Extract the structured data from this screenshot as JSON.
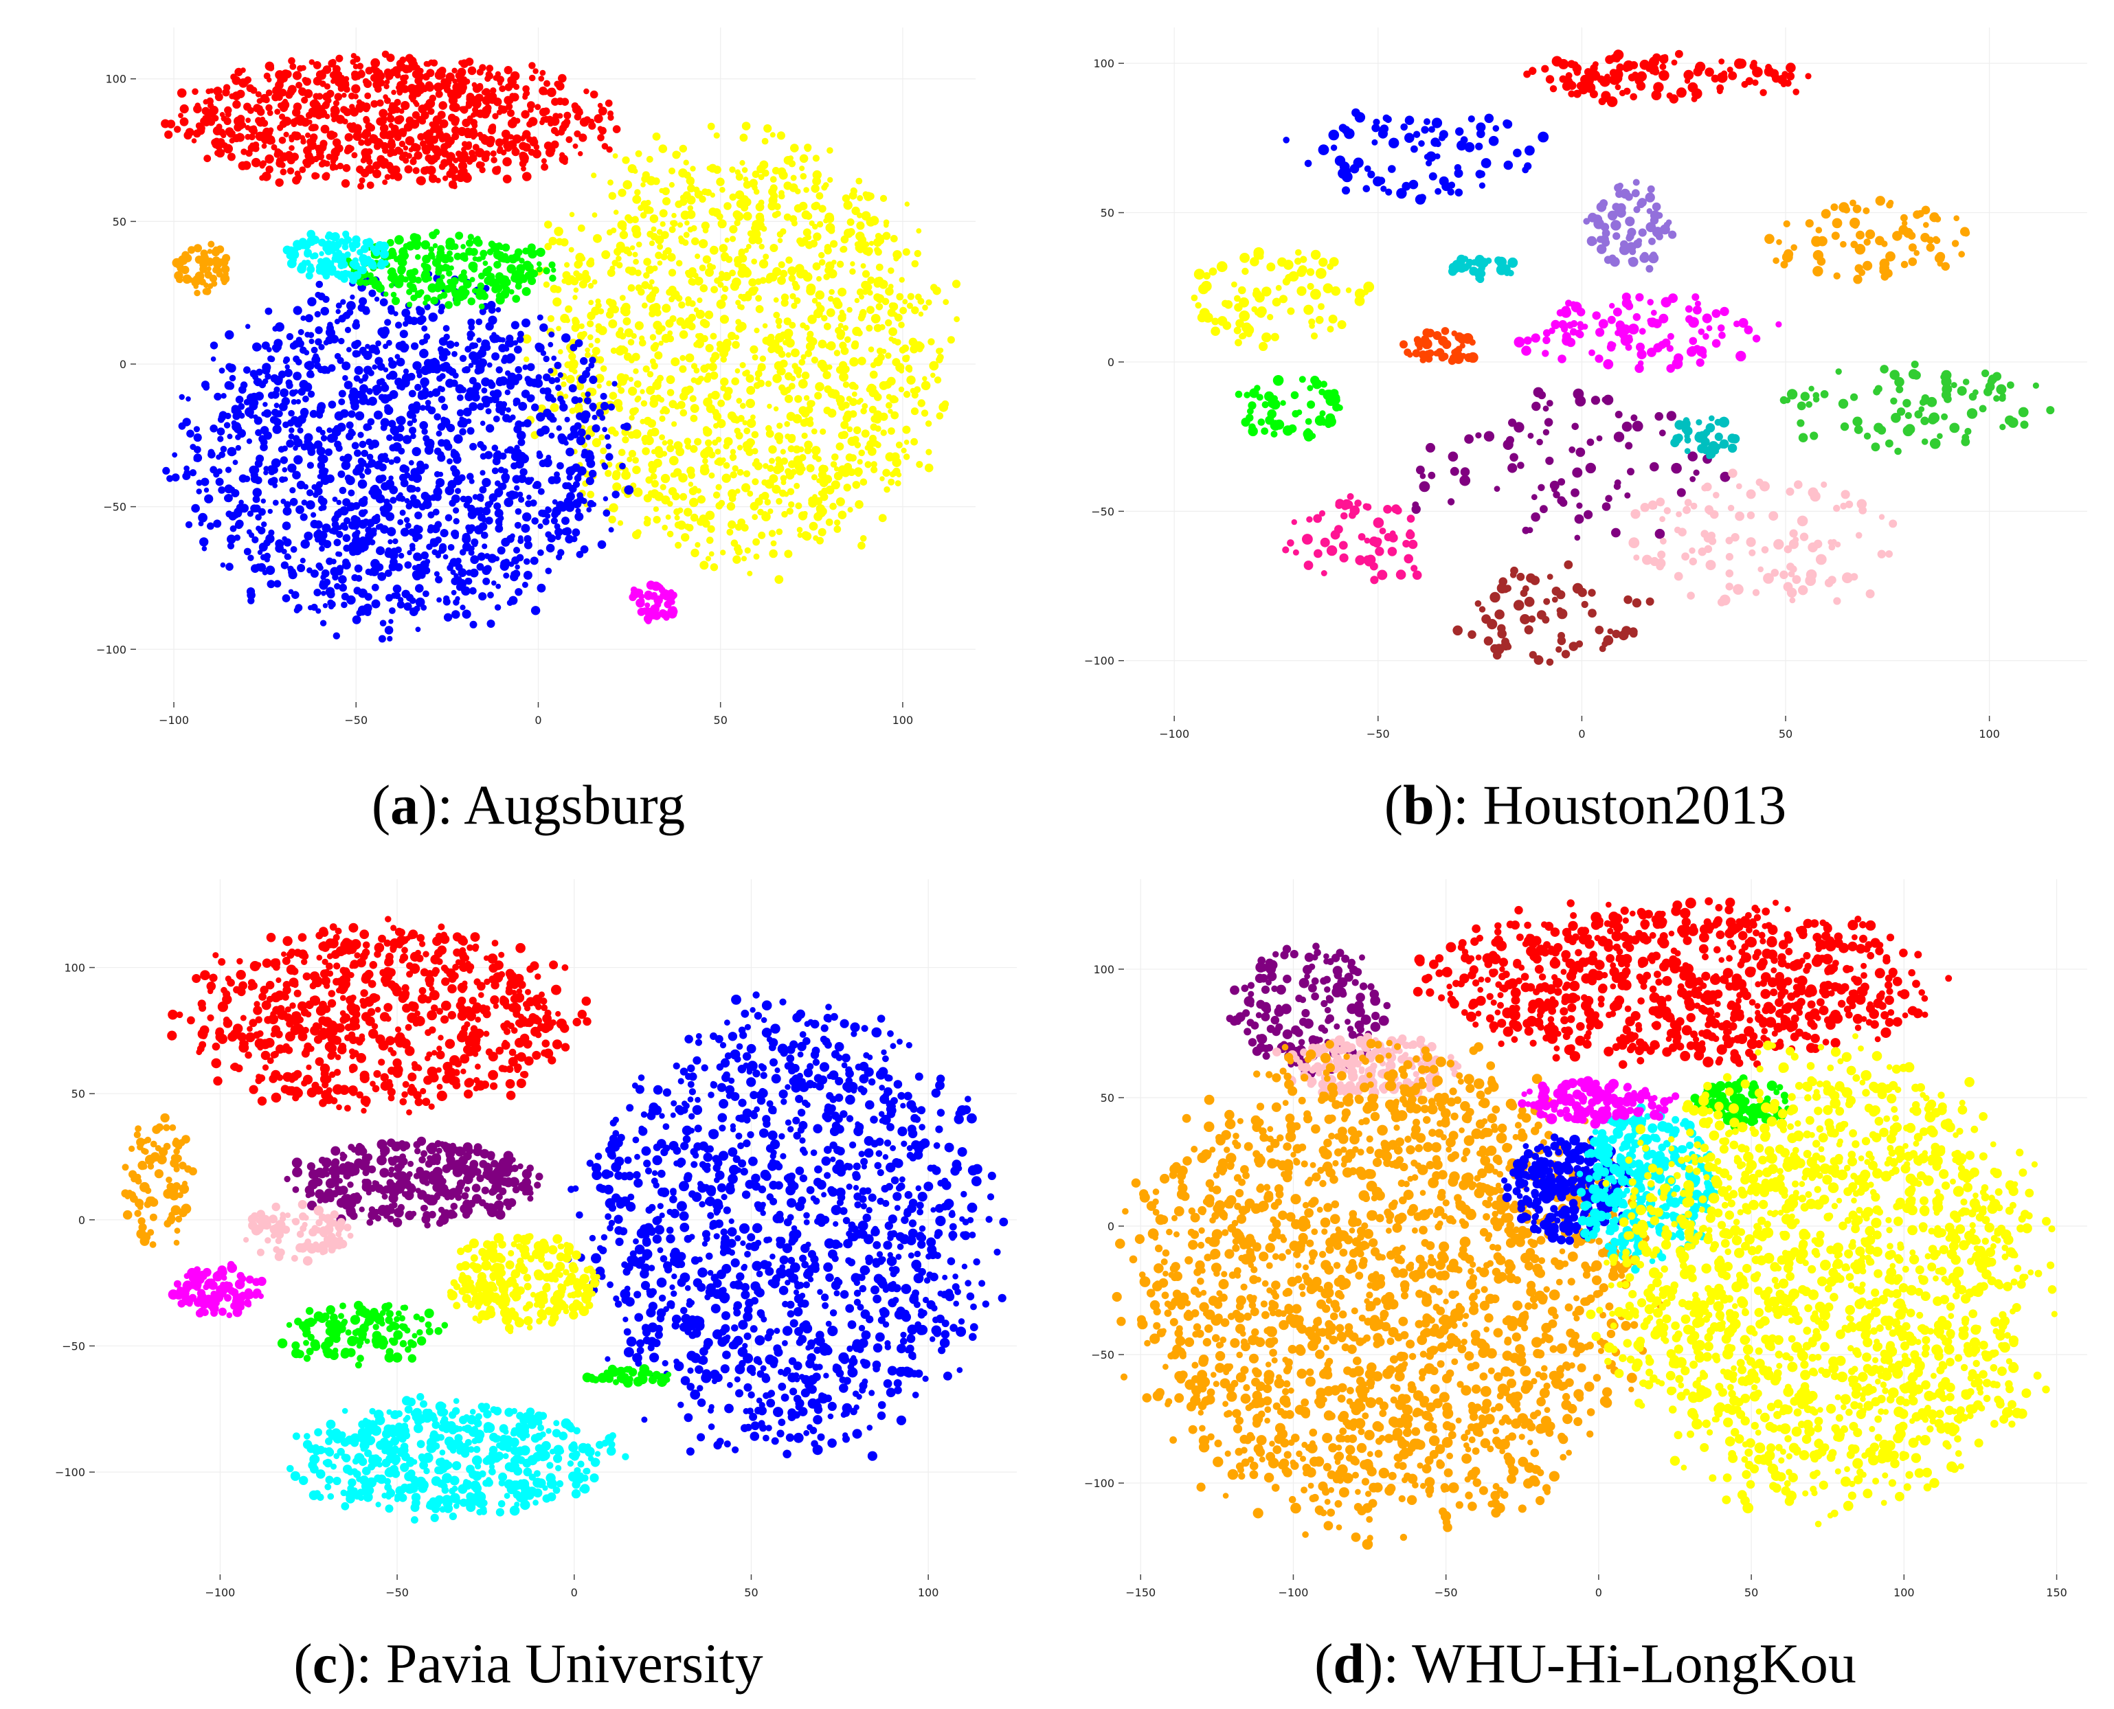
{
  "chart_data": [
    {
      "type": "scatter",
      "panel_letter": "a",
      "caption_text": ": Augsburg",
      "xlim": [
        -110,
        120
      ],
      "ylim": [
        -118,
        118
      ],
      "xticks": [
        -100,
        -50,
        0,
        50,
        100
      ],
      "yticks": [
        -100,
        -50,
        0,
        50,
        100
      ],
      "grid": true,
      "clusters": [
        {
          "color": "#ff0000",
          "cx": -40,
          "cy": 85,
          "rx": 58,
          "ry": 22,
          "n": 900
        },
        {
          "color": "#ffff00",
          "cx": 55,
          "cy": 5,
          "rx": 55,
          "ry": 72,
          "n": 1400
        },
        {
          "color": "#0000ff",
          "cx": -38,
          "cy": -32,
          "rx": 58,
          "ry": 58,
          "n": 1500
        },
        {
          "color": "#00ff00",
          "cx": -25,
          "cy": 33,
          "rx": 28,
          "ry": 12,
          "n": 260
        },
        {
          "color": "#00ffff",
          "cx": -55,
          "cy": 38,
          "rx": 14,
          "ry": 8,
          "n": 120
        },
        {
          "color": "#ffa500",
          "cx": -92,
          "cy": 33,
          "rx": 7,
          "ry": 9,
          "n": 60
        },
        {
          "color": "#ff00ff",
          "cx": 32,
          "cy": -83,
          "rx": 6,
          "ry": 7,
          "n": 60
        }
      ]
    },
    {
      "type": "scatter",
      "panel_letter": "b",
      "caption_text": ": Houston2013",
      "xlim": [
        -112,
        124
      ],
      "ylim": [
        -118,
        112
      ],
      "xticks": [
        -100,
        -50,
        0,
        50,
        100
      ],
      "yticks": [
        -100,
        -50,
        0,
        50,
        100
      ],
      "grid": true,
      "clusters": [
        {
          "color": "#ff0000",
          "cx": 20,
          "cy": 95,
          "rx": 40,
          "ry": 8,
          "n": 120
        },
        {
          "color": "#0000ff",
          "cx": -40,
          "cy": 70,
          "rx": 30,
          "ry": 14,
          "n": 90
        },
        {
          "color": "#9370db",
          "cx": 12,
          "cy": 45,
          "rx": 10,
          "ry": 14,
          "n": 70
        },
        {
          "color": "#ffff00",
          "cx": -75,
          "cy": 23,
          "rx": 22,
          "ry": 17,
          "n": 90
        },
        {
          "color": "#ffa500",
          "cx": 70,
          "cy": 40,
          "rx": 28,
          "ry": 14,
          "n": 80
        },
        {
          "color": "#ff00ff",
          "cx": 15,
          "cy": 10,
          "rx": 30,
          "ry": 12,
          "n": 110
        },
        {
          "color": "#ff4500",
          "cx": -35,
          "cy": 5,
          "rx": 10,
          "ry": 5,
          "n": 40
        },
        {
          "color": "#00ff00",
          "cx": -72,
          "cy": -15,
          "rx": 14,
          "ry": 10,
          "n": 60
        },
        {
          "color": "#32cd32",
          "cx": 80,
          "cy": -15,
          "rx": 35,
          "ry": 14,
          "n": 90
        },
        {
          "color": "#800080",
          "cx": -5,
          "cy": -35,
          "rx": 40,
          "ry": 25,
          "n": 90
        },
        {
          "color": "#00bfbf",
          "cx": 30,
          "cy": -25,
          "rx": 8,
          "ry": 7,
          "n": 40
        },
        {
          "color": "#ffc0cb",
          "cx": 45,
          "cy": -60,
          "rx": 35,
          "ry": 22,
          "n": 110
        },
        {
          "color": "#ff1493",
          "cx": -55,
          "cy": -60,
          "rx": 18,
          "ry": 14,
          "n": 60
        },
        {
          "color": "#a52a2a",
          "cx": -5,
          "cy": -85,
          "rx": 25,
          "ry": 16,
          "n": 70
        },
        {
          "color": "#00ced1",
          "cx": -25,
          "cy": 32,
          "rx": 8,
          "ry": 4,
          "n": 30
        }
      ]
    },
    {
      "type": "scatter",
      "panel_letter": "c",
      "caption_text": ": Pavia University",
      "xlim": [
        -135,
        125
      ],
      "ylim": [
        -140,
        135
      ],
      "xticks": [
        -100,
        -50,
        0,
        50,
        100
      ],
      "yticks": [
        -100,
        -50,
        0,
        50,
        100
      ],
      "grid": true,
      "clusters": [
        {
          "color": "#ff0000",
          "cx": -55,
          "cy": 80,
          "rx": 55,
          "ry": 35,
          "n": 700
        },
        {
          "color": "#0000ff",
          "cx": 60,
          "cy": -5,
          "rx": 55,
          "ry": 85,
          "n": 1300
        },
        {
          "color": "#800080",
          "cx": -45,
          "cy": 15,
          "rx": 33,
          "ry": 16,
          "n": 350
        },
        {
          "color": "#ffff00",
          "cx": -15,
          "cy": -25,
          "rx": 20,
          "ry": 18,
          "n": 250
        },
        {
          "color": "#00ffff",
          "cx": -35,
          "cy": -95,
          "rx": 45,
          "ry": 22,
          "n": 500
        },
        {
          "color": "#ffa500",
          "cx": -118,
          "cy": 15,
          "rx": 10,
          "ry": 25,
          "n": 90
        },
        {
          "color": "#ffc0cb",
          "cx": -78,
          "cy": -5,
          "rx": 15,
          "ry": 10,
          "n": 90
        },
        {
          "color": "#ff00ff",
          "cx": -100,
          "cy": -28,
          "rx": 12,
          "ry": 10,
          "n": 110
        },
        {
          "color": "#00ff00",
          "cx": -60,
          "cy": -45,
          "rx": 22,
          "ry": 12,
          "n": 130
        },
        {
          "color": "#00ff00",
          "cx": 15,
          "cy": -62,
          "rx": 12,
          "ry": 4,
          "n": 40
        }
      ]
    },
    {
      "type": "scatter",
      "panel_letter": "d",
      "caption_text": ": WHU-Hi-LongKou",
      "xlim": [
        -155,
        160
      ],
      "ylim": [
        -135,
        135
      ],
      "xticks": [
        -150,
        -100,
        -50,
        0,
        50,
        100,
        150
      ],
      "yticks": [
        -100,
        -50,
        0,
        50,
        100
      ],
      "grid": true,
      "clusters": [
        {
          "color": "#ff0000",
          "cx": 25,
          "cy": 95,
          "rx": 80,
          "ry": 30,
          "n": 800
        },
        {
          "color": "#800080",
          "cx": -95,
          "cy": 85,
          "rx": 25,
          "ry": 25,
          "n": 160
        },
        {
          "color": "#ffc0cb",
          "cx": -75,
          "cy": 62,
          "rx": 30,
          "ry": 12,
          "n": 170
        },
        {
          "color": "#ffa500",
          "cx": -70,
          "cy": -25,
          "rx": 80,
          "ry": 90,
          "n": 1800
        },
        {
          "color": "#0000ff",
          "cx": -10,
          "cy": 15,
          "rx": 20,
          "ry": 20,
          "n": 250
        },
        {
          "color": "#00ffff",
          "cx": 15,
          "cy": 15,
          "rx": 22,
          "ry": 32,
          "n": 300
        },
        {
          "color": "#ff00ff",
          "cx": 0,
          "cy": 48,
          "rx": 25,
          "ry": 8,
          "n": 120
        },
        {
          "color": "#00ff00",
          "cx": 48,
          "cy": 48,
          "rx": 15,
          "ry": 9,
          "n": 100
        },
        {
          "color": "#ffff00",
          "cx": 75,
          "cy": -20,
          "rx": 70,
          "ry": 85,
          "n": 1600
        }
      ]
    }
  ]
}
